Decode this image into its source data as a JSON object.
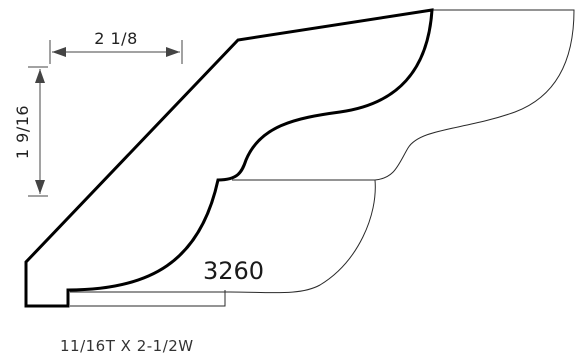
{
  "dimensions": {
    "width_label": "2 1/8",
    "height_label": "1 9/16"
  },
  "profile": {
    "code": "3260",
    "description": "11/16T X 2-1/2W"
  },
  "colors": {
    "outline": "#000000",
    "ghost_outline": "#2a2a2a",
    "dimension": "#444444"
  }
}
